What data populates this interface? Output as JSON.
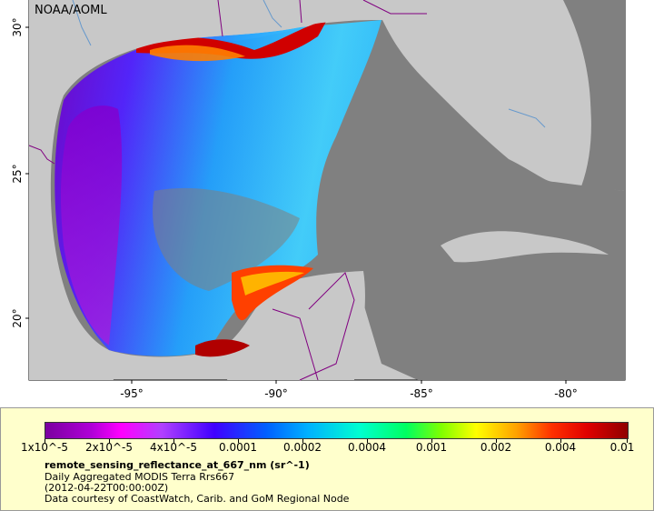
{
  "map": {
    "credit": "NOAA/AOML",
    "lat_labels": [
      "30°",
      "25°",
      "20°"
    ],
    "lon_labels": [
      "-95°",
      "-90°",
      "-85°",
      "-80°"
    ]
  },
  "legend": {
    "tick_labels": [
      "1x10^-5",
      "2x10^-5",
      "4x10^-5",
      "0.0001",
      "0.0002",
      "0.0004",
      "0.001",
      "0.002",
      "0.004",
      "0.01"
    ],
    "variable": "remote_sensing_reflectance_at_667_nm (sr^-1)",
    "line1": "Daily Aggregated MODIS Terra Rrs667",
    "line2": "(2012-04-22T00:00:00Z)",
    "line3": "Data courtesy of CoastWatch, Carib. and GoM Regional Node"
  },
  "colors": {
    "land": "#c8c8c8",
    "no_data_water": "#808080",
    "panel_bg": "#ffffcc",
    "borders": "#800080",
    "rivers": "#6699cc"
  }
}
